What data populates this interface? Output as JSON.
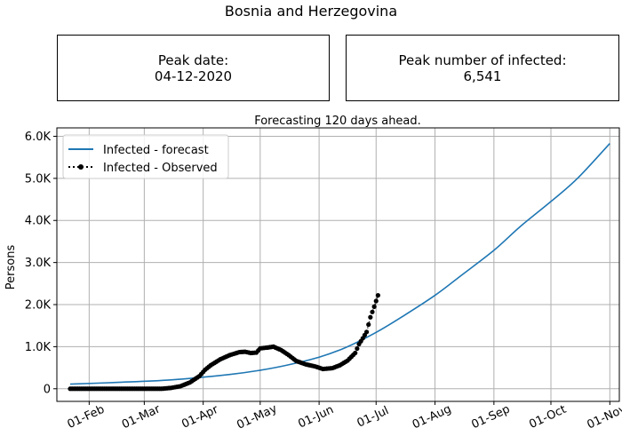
{
  "page": {
    "title": "Bosnia and Herzegovina",
    "peak_date_label": "Peak date:",
    "peak_date_value": "04-12-2020",
    "peak_infected_label": "Peak number of infected:",
    "peak_infected_value": "6,541"
  },
  "chart_data": {
    "type": "line",
    "title": "Forecasting 120 days ahead.",
    "xlabel": "",
    "ylabel": "Persons",
    "x_domain": [
      "2020-01-15",
      "2020-11-06"
    ],
    "ylim": [
      -300,
      6200
    ],
    "x_ticks": [
      {
        "date": "2020-02-01",
        "label": "01-Feb"
      },
      {
        "date": "2020-03-01",
        "label": "01-Mar"
      },
      {
        "date": "2020-04-01",
        "label": "01-Apr"
      },
      {
        "date": "2020-05-01",
        "label": "01-May"
      },
      {
        "date": "2020-06-01",
        "label": "01-Jun"
      },
      {
        "date": "2020-07-01",
        "label": "01-Jul"
      },
      {
        "date": "2020-08-01",
        "label": "01-Aug"
      },
      {
        "date": "2020-09-01",
        "label": "01-Sep"
      },
      {
        "date": "2020-10-01",
        "label": "01-Oct"
      },
      {
        "date": "2020-11-01",
        "label": "01-Nov"
      }
    ],
    "y_ticks": [
      {
        "value": 0,
        "label": "0"
      },
      {
        "value": 1000,
        "label": "1.0K"
      },
      {
        "value": 2000,
        "label": "2.0K"
      },
      {
        "value": 3000,
        "label": "3.0K"
      },
      {
        "value": 4000,
        "label": "4.0K"
      },
      {
        "value": 5000,
        "label": "5.0K"
      },
      {
        "value": 6000,
        "label": "6.0K"
      }
    ],
    "grid": true,
    "legend_position": "top-left",
    "series": [
      {
        "name": "Infected - forecast",
        "color": "#1f77b4",
        "style": "solid",
        "points": [
          [
            "2020-01-22",
            110
          ],
          [
            "2020-02-15",
            150
          ],
          [
            "2020-03-15",
            210
          ],
          [
            "2020-04-15",
            340
          ],
          [
            "2020-05-01",
            440
          ],
          [
            "2020-05-15",
            560
          ],
          [
            "2020-06-01",
            750
          ],
          [
            "2020-06-15",
            980
          ],
          [
            "2020-07-01",
            1340
          ],
          [
            "2020-07-15",
            1720
          ],
          [
            "2020-08-01",
            2220
          ],
          [
            "2020-08-15",
            2700
          ],
          [
            "2020-09-01",
            3290
          ],
          [
            "2020-09-15",
            3860
          ],
          [
            "2020-10-01",
            4450
          ],
          [
            "2020-10-15",
            5000
          ],
          [
            "2020-11-01",
            5830
          ]
        ]
      },
      {
        "name": "Infected - Observed",
        "color": "#000000",
        "style": "dotted-markers",
        "points": [
          [
            "2020-01-22",
            0
          ],
          [
            "2020-02-01",
            0
          ],
          [
            "2020-02-15",
            0
          ],
          [
            "2020-03-01",
            0
          ],
          [
            "2020-03-10",
            0
          ],
          [
            "2020-03-15",
            20
          ],
          [
            "2020-03-20",
            60
          ],
          [
            "2020-03-25",
            150
          ],
          [
            "2020-03-30",
            300
          ],
          [
            "2020-04-02",
            450
          ],
          [
            "2020-04-05",
            560
          ],
          [
            "2020-04-10",
            700
          ],
          [
            "2020-04-15",
            800
          ],
          [
            "2020-04-20",
            870
          ],
          [
            "2020-04-23",
            880
          ],
          [
            "2020-04-26",
            850
          ],
          [
            "2020-04-29",
            860
          ],
          [
            "2020-05-01",
            960
          ],
          [
            "2020-05-05",
            980
          ],
          [
            "2020-05-08",
            1000
          ],
          [
            "2020-05-12",
            920
          ],
          [
            "2020-05-16",
            800
          ],
          [
            "2020-05-20",
            660
          ],
          [
            "2020-05-25",
            580
          ],
          [
            "2020-05-30",
            530
          ],
          [
            "2020-06-03",
            470
          ],
          [
            "2020-06-08",
            490
          ],
          [
            "2020-06-12",
            560
          ],
          [
            "2020-06-16",
            670
          ],
          [
            "2020-06-20",
            850
          ],
          [
            "2020-06-22",
            1060
          ],
          [
            "2020-06-24",
            1200
          ],
          [
            "2020-06-26",
            1350
          ],
          [
            "2020-06-28",
            1700
          ],
          [
            "2020-06-30",
            1950
          ],
          [
            "2020-07-02",
            2220
          ]
        ]
      }
    ]
  }
}
